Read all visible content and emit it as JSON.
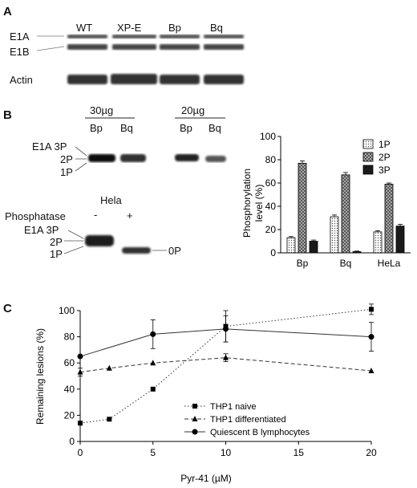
{
  "panelA": {
    "letter": "A",
    "lanes": [
      "WT",
      "XP-E",
      "Bp",
      "Bq"
    ],
    "bands": [
      "E1A",
      "E1B"
    ],
    "actin_label": "Actin"
  },
  "panelB": {
    "letter": "B",
    "amount_1": "30µg",
    "amount_2": "20µg",
    "lanes_left": [
      "Bp",
      "Bq"
    ],
    "lanes_right": [
      "Bp",
      "Bq"
    ],
    "band_labels": [
      "E1A 3P",
      "2P",
      "1P"
    ],
    "hela_label": "Hela",
    "phosphatase_label": "Phosphatase",
    "phosphatase_minus": "-",
    "phosphatase_plus": "+",
    "band_labels_lower": [
      "E1A 3P",
      "2P",
      "1P"
    ],
    "zero_p_label": "0P"
  },
  "panelC": {
    "letter": "C"
  },
  "chart_data": [
    {
      "type": "bar",
      "categories": [
        "Bp",
        "Bq",
        "HeLa"
      ],
      "series": [
        {
          "name": "1P",
          "values": [
            13,
            31,
            18
          ],
          "errors": [
            1,
            1.5,
            1
          ],
          "pattern": "dots"
        },
        {
          "name": "2P",
          "values": [
            77,
            67,
            59
          ],
          "errors": [
            2,
            2,
            1
          ],
          "pattern": "crosshatch"
        },
        {
          "name": "3P",
          "values": [
            10,
            1,
            23
          ],
          "errors": [
            1,
            0.5,
            1.5
          ],
          "pattern": "solid"
        }
      ],
      "ylabel_line1": "Phosphorylation",
      "ylabel_line2": "level (%)",
      "ylim": [
        0,
        100
      ],
      "yticks": [
        0,
        20,
        40,
        60,
        80,
        100
      ],
      "legend_position": "top-right"
    },
    {
      "type": "line",
      "xlabel": "Pyr-41 (µM)",
      "ylabel": "Remaining lesions (%)",
      "xlim": [
        0,
        20
      ],
      "ylim": [
        0,
        100
      ],
      "xticks": [
        0,
        5,
        10,
        15,
        20
      ],
      "yticks": [
        0,
        20,
        40,
        60,
        80,
        100
      ],
      "legend_position": "bottom-right",
      "series": [
        {
          "name": "THP1 naive",
          "marker": "square",
          "dash": "dotted",
          "x": [
            0,
            2,
            5,
            10,
            20
          ],
          "y": [
            14,
            17,
            40,
            88,
            101
          ],
          "err": [
            0,
            0,
            0,
            12,
            4
          ]
        },
        {
          "name": "THP1 differentiated",
          "marker": "triangle",
          "dash": "dashed",
          "x": [
            0,
            2,
            5,
            10,
            20
          ],
          "y": [
            53,
            56,
            60,
            64,
            54
          ],
          "err": [
            3,
            0,
            0,
            3,
            0
          ]
        },
        {
          "name": "Quiescent B lymphocytes",
          "marker": "circle",
          "dash": "solid",
          "x": [
            0,
            5,
            10,
            20
          ],
          "y": [
            65,
            82,
            86,
            80
          ],
          "err": [
            0,
            11,
            10,
            11
          ]
        }
      ]
    }
  ]
}
